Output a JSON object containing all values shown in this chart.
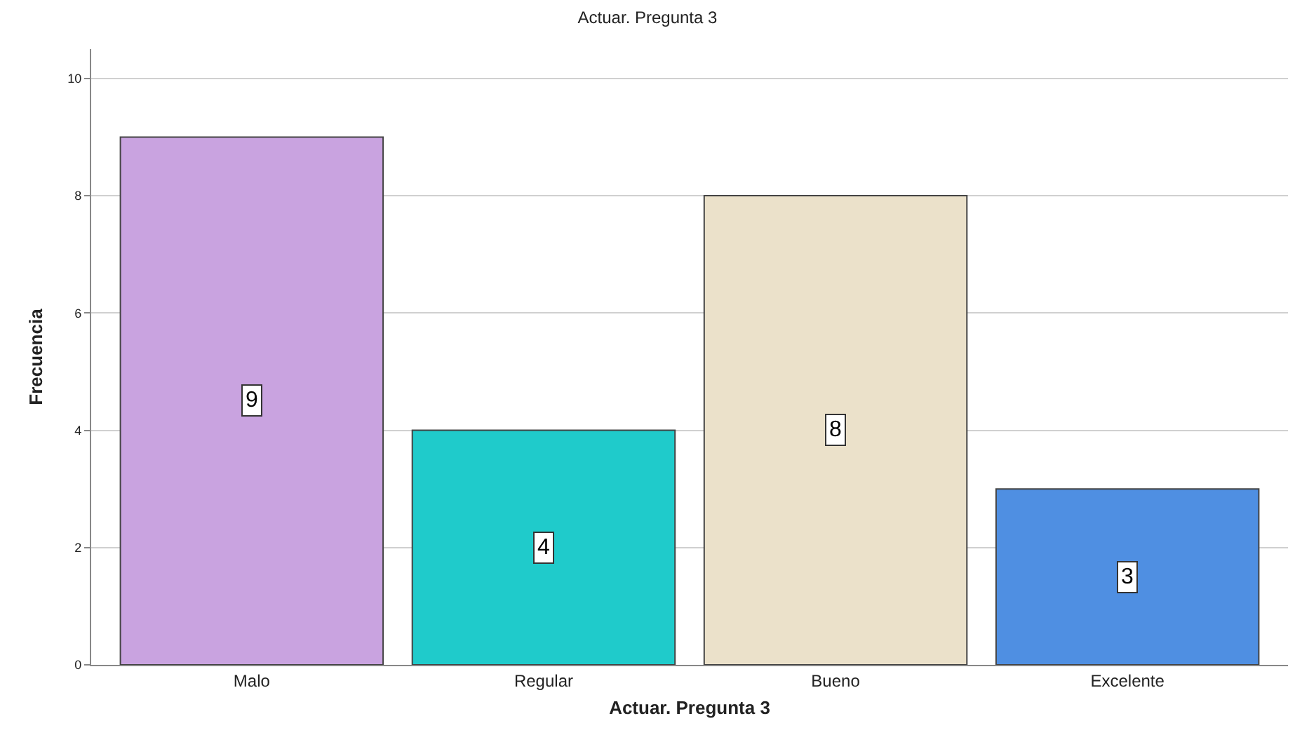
{
  "chart_data": {
    "type": "bar",
    "title": "Actuar. Pregunta 3",
    "xlabel": "Actuar. Pregunta 3",
    "ylabel": "Frecuencia",
    "categories": [
      "Malo",
      "Regular",
      "Bueno",
      "Excelente"
    ],
    "values": [
      9,
      4,
      8,
      3
    ],
    "colors": [
      "#c9a3e0",
      "#1fcbcb",
      "#ebe1ca",
      "#4f8fe2"
    ],
    "ylim": [
      0,
      10.5
    ],
    "yticks": [
      0,
      2,
      4,
      6,
      8,
      10
    ],
    "grid": "y",
    "data_labels": true
  }
}
